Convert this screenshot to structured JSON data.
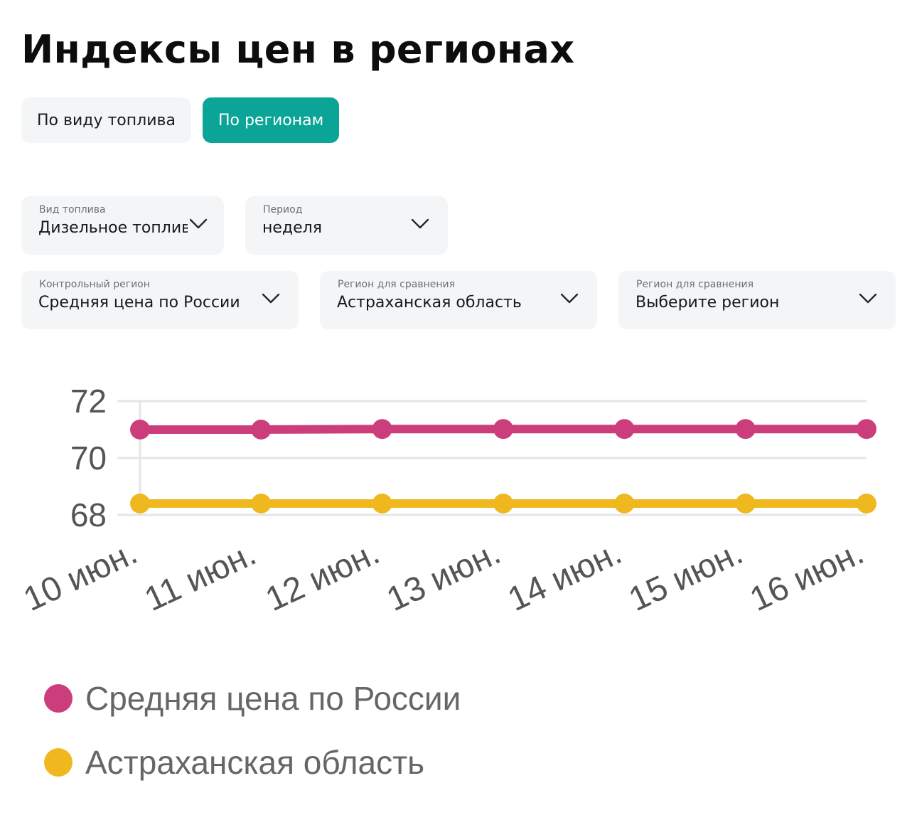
{
  "header": {
    "title": "Индексы цен в регионах"
  },
  "tabs": [
    {
      "label": "По виду топлива",
      "active": false
    },
    {
      "label": "По регионам",
      "active": true
    }
  ],
  "filters": {
    "fuel": {
      "label": "Вид топлива",
      "value": "Дизельное топливо"
    },
    "period": {
      "label": "Период",
      "value": "неделя"
    },
    "control_region": {
      "label": "Контрольный регион",
      "value": "Средняя цена по России"
    },
    "compare_region_1": {
      "label": "Регион для сравнения",
      "value": "Астраханская область"
    },
    "compare_region_2": {
      "label": "Регион для сравнения",
      "value": "Выберите регион"
    }
  },
  "icons": {
    "dropdown": "chevron-down-icon"
  },
  "colors": {
    "accent": "#0aa597",
    "series_russia": "#cc3e7b",
    "series_astrakhan": "#efb81f"
  },
  "chart_data": {
    "type": "line",
    "categories": [
      "10 июн.",
      "11 июн.",
      "12 июн.",
      "13 июн.",
      "14 июн.",
      "15 июн.",
      "16 июн."
    ],
    "series": [
      {
        "name": "Средняя цена по России",
        "color": "#cc3e7b",
        "values": [
          71.0,
          71.0,
          71.02,
          71.02,
          71.02,
          71.02,
          71.02
        ]
      },
      {
        "name": "Астраханская область",
        "color": "#efb81f",
        "values": [
          68.4,
          68.4,
          68.4,
          68.4,
          68.4,
          68.4,
          68.4
        ]
      }
    ],
    "yticks": [
      68,
      70,
      72
    ],
    "ylim": [
      68,
      72
    ],
    "grid": true,
    "legend_position": "bottom-left"
  }
}
